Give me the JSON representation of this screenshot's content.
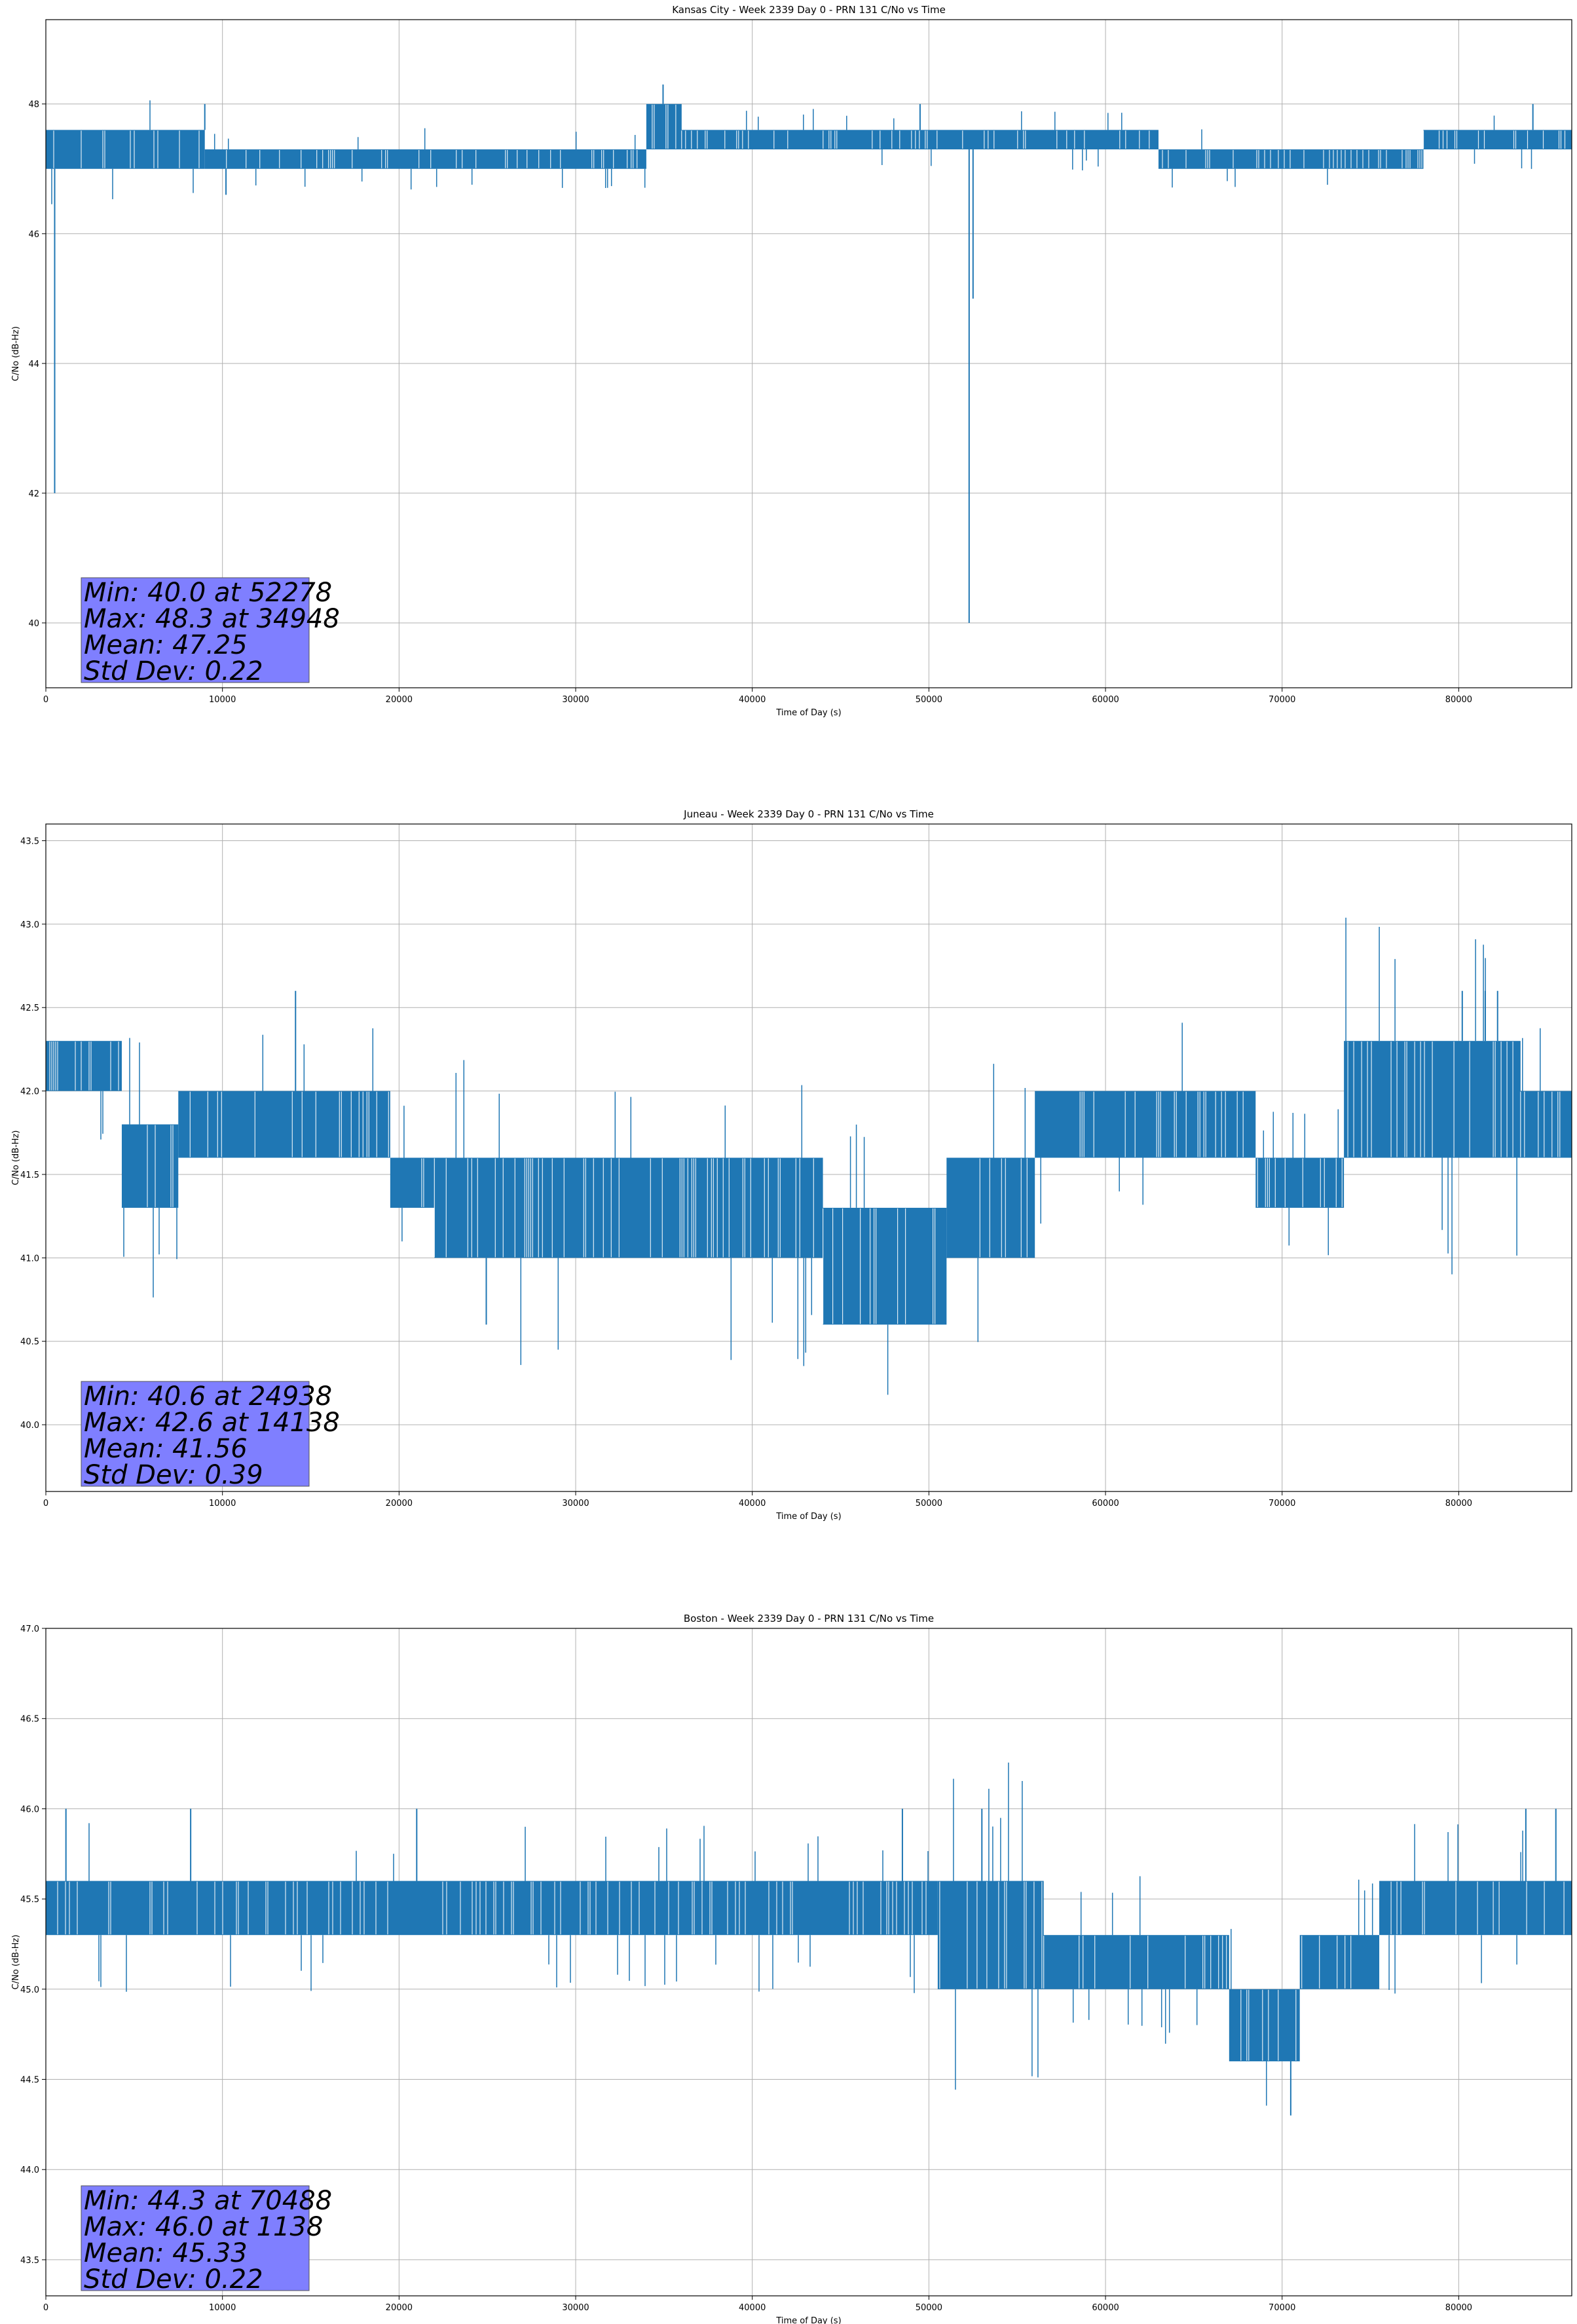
{
  "chart_data": [
    {
      "type": "line",
      "title": "Kansas City - Week 2339 Day 0 - PRN 131 C/No vs Time",
      "xlabel": "Time of Day (s)",
      "ylabel": "C/No (dB-Hz)",
      "xlim": [
        0,
        86400
      ],
      "ylim": [
        39,
        49.3
      ],
      "xticks": [
        "0",
        "10000",
        "20000",
        "30000",
        "40000",
        "50000",
        "60000",
        "70000",
        "80000"
      ],
      "yticks": [
        "40",
        "42",
        "44",
        "46",
        "48"
      ],
      "grid": true,
      "color": "#1f77b4",
      "stats": [
        "Min: 40.0 at 52278",
        "Max: 48.3 at 34948",
        "Mean: 47.25",
        "Std Dev: 0.22"
      ],
      "segments": [
        {
          "x_start": 0,
          "x_end": 9000,
          "lo": 47.0,
          "hi": 47.6
        },
        {
          "x_start": 9000,
          "x_end": 34000,
          "lo": 47.0,
          "hi": 47.3
        },
        {
          "x_start": 34000,
          "x_end": 36000,
          "lo": 47.3,
          "hi": 48.0
        },
        {
          "x_start": 36000,
          "x_end": 63000,
          "lo": 47.3,
          "hi": 47.6
        },
        {
          "x_start": 63000,
          "x_end": 78000,
          "lo": 47.0,
          "hi": 47.3
        },
        {
          "x_start": 78000,
          "x_end": 86400,
          "lo": 47.3,
          "hi": 47.6
        }
      ],
      "spikes": [
        {
          "x": 500,
          "y": 42.0
        },
        {
          "x": 9000,
          "y": 48.0
        },
        {
          "x": 10200,
          "y": 46.6
        },
        {
          "x": 34948,
          "y": 48.3
        },
        {
          "x": 49500,
          "y": 48.0
        },
        {
          "x": 52278,
          "y": 40.0
        },
        {
          "x": 52500,
          "y": 45.0
        },
        {
          "x": 84200,
          "y": 48.0
        }
      ]
    },
    {
      "type": "line",
      "title": "Juneau - Week 2339 Day 0 - PRN 131 C/No vs Time",
      "xlabel": "Time of Day (s)",
      "ylabel": "C/No (dB-Hz)",
      "xlim": [
        0,
        86400
      ],
      "ylim": [
        39.6,
        43.6
      ],
      "xticks": [
        "0",
        "10000",
        "20000",
        "30000",
        "40000",
        "50000",
        "60000",
        "70000",
        "80000"
      ],
      "yticks": [
        "40.0",
        "40.5",
        "41.0",
        "41.5",
        "42.0",
        "42.5",
        "43.0",
        "43.5"
      ],
      "grid": true,
      "color": "#1f77b4",
      "stats": [
        "Min: 40.6 at 24938",
        "Max: 42.6 at 14138",
        "Mean: 41.56",
        "Std Dev: 0.39"
      ],
      "segments": [
        {
          "x_start": 0,
          "x_end": 4300,
          "lo": 42.0,
          "hi": 42.3
        },
        {
          "x_start": 4300,
          "x_end": 7500,
          "lo": 41.3,
          "hi": 41.8
        },
        {
          "x_start": 7500,
          "x_end": 19500,
          "lo": 41.6,
          "hi": 42.0
        },
        {
          "x_start": 19500,
          "x_end": 22000,
          "lo": 41.3,
          "hi": 41.6
        },
        {
          "x_start": 22000,
          "x_end": 44000,
          "lo": 41.0,
          "hi": 41.6
        },
        {
          "x_start": 44000,
          "x_end": 51000,
          "lo": 40.6,
          "hi": 41.3
        },
        {
          "x_start": 51000,
          "x_end": 56000,
          "lo": 41.0,
          "hi": 41.6
        },
        {
          "x_start": 56000,
          "x_end": 68500,
          "lo": 41.6,
          "hi": 42.0
        },
        {
          "x_start": 68500,
          "x_end": 73500,
          "lo": 41.3,
          "hi": 41.6
        },
        {
          "x_start": 73500,
          "x_end": 83500,
          "lo": 41.6,
          "hi": 42.3
        },
        {
          "x_start": 83500,
          "x_end": 86400,
          "lo": 41.6,
          "hi": 42.0
        }
      ],
      "spikes": [
        {
          "x": 14138,
          "y": 42.6
        },
        {
          "x": 24938,
          "y": 40.6
        },
        {
          "x": 80200,
          "y": 42.6
        },
        {
          "x": 81500,
          "y": 42.6
        },
        {
          "x": 82200,
          "y": 42.6
        }
      ]
    },
    {
      "type": "line",
      "title": "Boston - Week 2339 Day 0 - PRN 131 C/No vs Time",
      "xlabel": "Time of Day (s)",
      "ylabel": "C/No (dB-Hz)",
      "xlim": [
        0,
        86400
      ],
      "ylim": [
        43.3,
        47.0
      ],
      "xticks": [
        "0",
        "10000",
        "20000",
        "30000",
        "40000",
        "50000",
        "60000",
        "70000",
        "80000"
      ],
      "yticks": [
        "43.5",
        "44.0",
        "44.5",
        "45.0",
        "45.5",
        "46.0",
        "46.5",
        "47.0"
      ],
      "grid": true,
      "color": "#1f77b4",
      "stats": [
        "Min: 44.3 at 70488",
        "Max: 46.0 at 1138",
        "Mean: 45.33",
        "Std Dev: 0.22"
      ],
      "segments": [
        {
          "x_start": 0,
          "x_end": 50500,
          "lo": 45.3,
          "hi": 45.6
        },
        {
          "x_start": 50500,
          "x_end": 56500,
          "lo": 45.0,
          "hi": 45.6
        },
        {
          "x_start": 56500,
          "x_end": 67000,
          "lo": 45.0,
          "hi": 45.3
        },
        {
          "x_start": 67000,
          "x_end": 71000,
          "lo": 44.6,
          "hi": 45.0
        },
        {
          "x_start": 71000,
          "x_end": 75500,
          "lo": 45.0,
          "hi": 45.3
        },
        {
          "x_start": 75500,
          "x_end": 86400,
          "lo": 45.3,
          "hi": 45.6
        }
      ],
      "spikes": [
        {
          "x": 1138,
          "y": 46.0
        },
        {
          "x": 8200,
          "y": 46.0
        },
        {
          "x": 21000,
          "y": 46.0
        },
        {
          "x": 48500,
          "y": 46.0
        },
        {
          "x": 53000,
          "y": 46.0
        },
        {
          "x": 70488,
          "y": 44.3
        },
        {
          "x": 83800,
          "y": 46.0
        },
        {
          "x": 85500,
          "y": 46.0
        }
      ]
    }
  ]
}
